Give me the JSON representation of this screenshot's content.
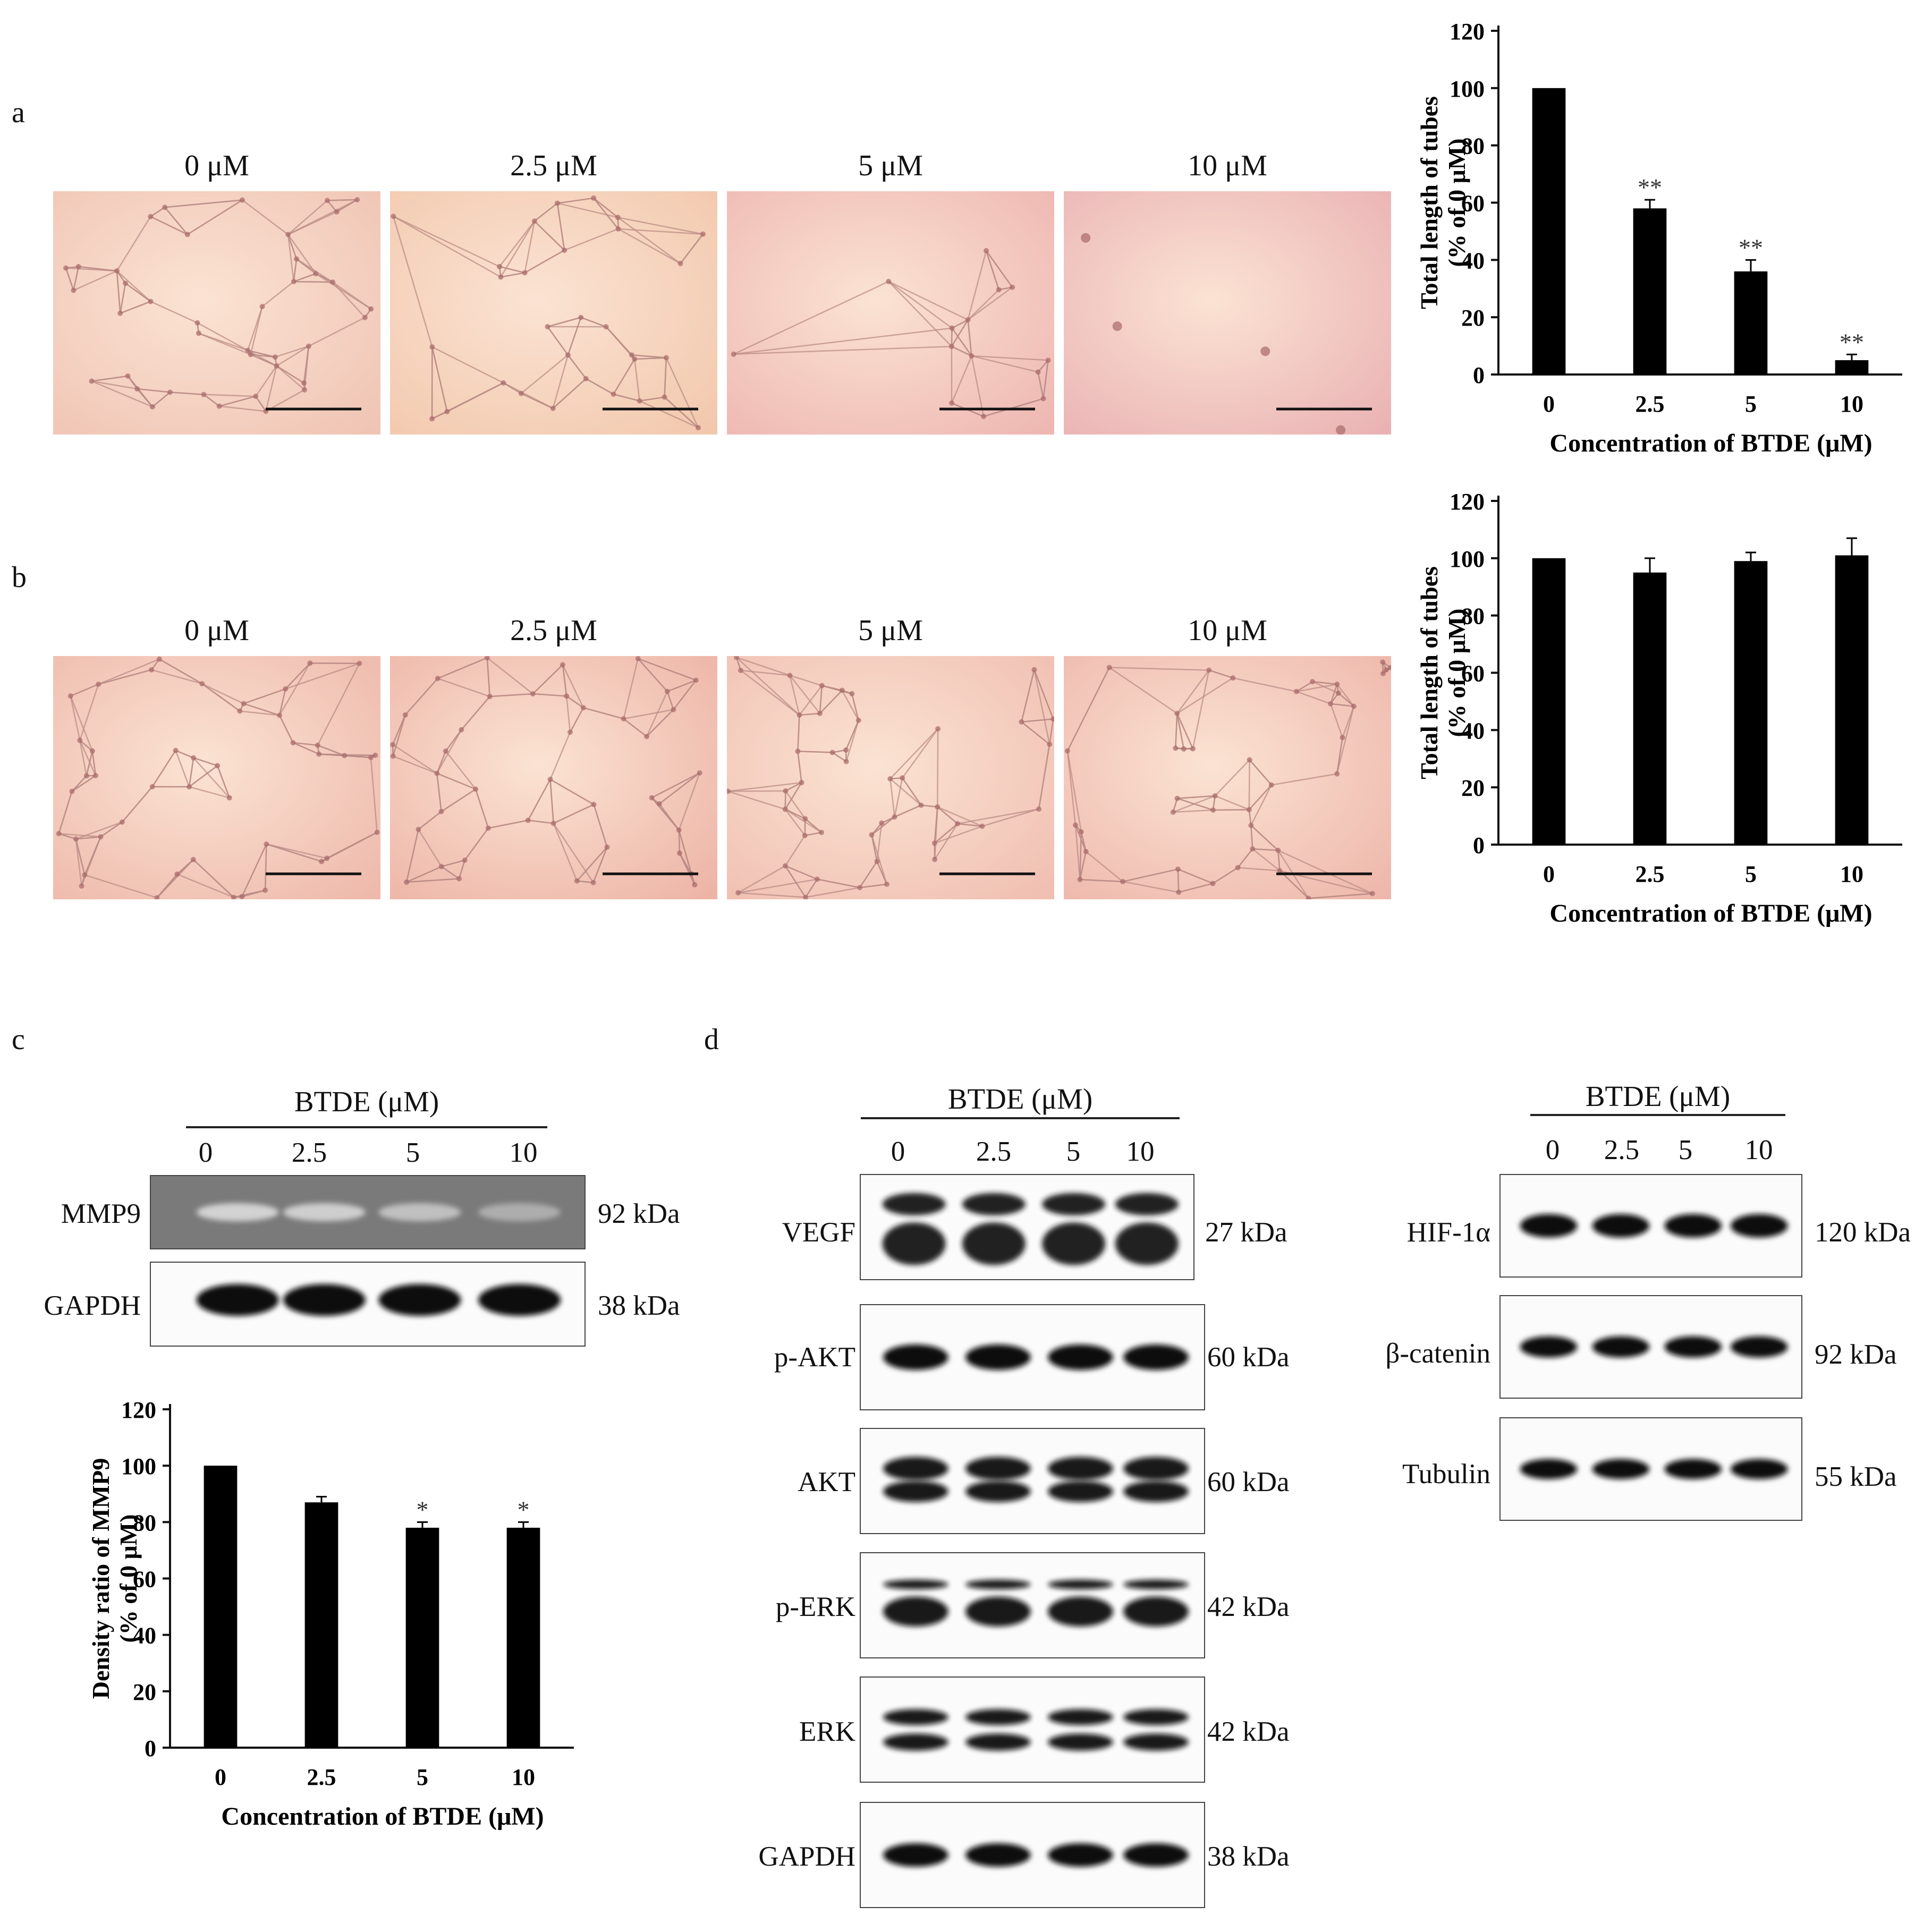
{
  "panels": {
    "a": {
      "label": "a",
      "conc": [
        "0 μM",
        "2.5 μM",
        "5 μM",
        "10 μM"
      ],
      "tint": [
        "#f0c4b4",
        "#f2c8ad",
        "#eeb7b2",
        "#eab2b4"
      ]
    },
    "b": {
      "label": "b",
      "conc": [
        "0 μM",
        "2.5 μM",
        "5 μM",
        "10 μM"
      ],
      "tint": [
        "#eeb9ab",
        "#edb4a6",
        "#f0bfb1",
        "#eeb7ab"
      ]
    },
    "c": {
      "label": "c",
      "header": "BTDE (μM)",
      "lanes": [
        "0",
        "2.5",
        "5",
        "10"
      ],
      "rows": [
        {
          "name": "MMP9",
          "kda": "92 kDa"
        },
        {
          "name": "GAPDH",
          "kda": "38 kDa"
        }
      ]
    },
    "d": {
      "label": "d",
      "left": {
        "header": "BTDE (μM)",
        "lanes": [
          "0",
          "2.5",
          "5",
          "10"
        ],
        "rows": [
          {
            "name": "VEGF",
            "kda": "27 kDa"
          },
          {
            "name": "p-AKT",
            "kda": "60 kDa"
          },
          {
            "name": "AKT",
            "kda": "60 kDa"
          },
          {
            "name": "p-ERK",
            "kda": "42 kDa"
          },
          {
            "name": "ERK",
            "kda": "42 kDa"
          },
          {
            "name": "GAPDH",
            "kda": "38 kDa"
          }
        ]
      },
      "right": {
        "header": "BTDE (μM)",
        "lanes": [
          "0",
          "2.5",
          "5",
          "10"
        ],
        "rows": [
          {
            "name": "HIF-1α",
            "kda": "120 kDa"
          },
          {
            "name": "β-catenin",
            "kda": "92 kDa"
          },
          {
            "name": "Tubulin",
            "kda": "55 kDa"
          }
        ]
      }
    }
  },
  "chart_data": [
    {
      "type": "bar",
      "panel": "a",
      "categories": [
        "0",
        "2.5",
        "5",
        "10"
      ],
      "values": [
        100,
        58,
        36,
        5
      ],
      "errors": [
        0,
        3,
        4,
        2
      ],
      "annotations": [
        "",
        "**",
        "**",
        "**"
      ],
      "xlabel": "Concentration of BTDE (μM)",
      "ylabel": [
        "Total length of tubes",
        "(% of 0 μM)"
      ],
      "yticks": [
        "0",
        "20",
        "40",
        "60",
        "80",
        "100",
        "120"
      ],
      "ylim": [
        0,
        120
      ]
    },
    {
      "type": "bar",
      "panel": "b",
      "categories": [
        "0",
        "2.5",
        "5",
        "10"
      ],
      "values": [
        100,
        95,
        99,
        101
      ],
      "errors": [
        0,
        5,
        3,
        6
      ],
      "annotations": [
        "",
        "",
        "",
        ""
      ],
      "xlabel": "Concentration of BTDE (μM)",
      "ylabel": [
        "Total length of tubes",
        "(% of 0 μM)"
      ],
      "yticks": [
        "0",
        "20",
        "40",
        "60",
        "80",
        "100",
        "120"
      ],
      "ylim": [
        0,
        120
      ]
    },
    {
      "type": "bar",
      "panel": "c",
      "categories": [
        "0",
        "2.5",
        "5",
        "10"
      ],
      "values": [
        100,
        87,
        78,
        78
      ],
      "errors": [
        0,
        2,
        2,
        2
      ],
      "annotations": [
        "",
        "",
        "*",
        "*"
      ],
      "xlabel": "Concentration of BTDE (μM)",
      "ylabel": [
        "Density ratio of MMP9",
        "(% of 0 μM)"
      ],
      "yticks": [
        "0",
        "20",
        "40",
        "60",
        "80",
        "100",
        "120"
      ],
      "ylim": [
        0,
        120
      ]
    }
  ]
}
